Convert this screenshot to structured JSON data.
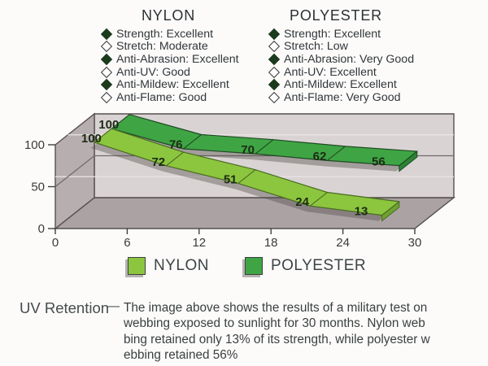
{
  "panels": [
    {
      "title": "NYLON",
      "items": [
        {
          "bullet": "filled",
          "text": "Strength: Excellent"
        },
        {
          "bullet": "outline",
          "text": "Stretch: Moderate"
        },
        {
          "bullet": "filled",
          "text": "Anti-Abrasion: Excellent"
        },
        {
          "bullet": "outline",
          "text": "Anti-UV: Good"
        },
        {
          "bullet": "filled",
          "text": "Anti-Mildew: Excellent"
        },
        {
          "bullet": "outline",
          "text": "Anti-Flame: Good"
        }
      ]
    },
    {
      "title": "POLYESTER",
      "items": [
        {
          "bullet": "filled",
          "text": "Strength: Excellent"
        },
        {
          "bullet": "outline",
          "text": "Stretch: Low"
        },
        {
          "bullet": "filled",
          "text": "Anti-Abrasion: Very Good"
        },
        {
          "bullet": "outline",
          "text": "Anti-UV: Excellent"
        },
        {
          "bullet": "filled",
          "text": "Anti-Mildew: Excellent"
        },
        {
          "bullet": "outline",
          "text": "Anti-Flame: Very Good"
        }
      ]
    }
  ],
  "chart_data": {
    "type": "area",
    "variant": "3d-ribbon",
    "title": "",
    "xlabel": "",
    "ylabel": "",
    "xlim": [
      0,
      30
    ],
    "ylim": [
      0,
      100
    ],
    "x_ticks": [
      0,
      6,
      12,
      18,
      24,
      30
    ],
    "y_ticks": [
      0,
      50,
      100
    ],
    "point_months": [
      3,
      9,
      15,
      21,
      27
    ],
    "grid": "on",
    "legend_position": "bottom",
    "series": [
      {
        "name": "NYLON",
        "color": "#8cc63f",
        "edge_color": "#6da22f",
        "values": [
          100,
          72,
          51,
          24,
          13
        ]
      },
      {
        "name": "POLYESTER",
        "color": "#3fa544",
        "edge_color": "#2d8334",
        "values": [
          100,
          76,
          70,
          62,
          56
        ]
      }
    ]
  },
  "legend": {
    "items": [
      {
        "label": "NYLON",
        "color": "#8cc63f"
      },
      {
        "label": "POLYESTER",
        "color": "#3fa544"
      }
    ]
  },
  "caption": {
    "title": "UV Retention",
    "dash": "—",
    "text": "The image above shows the results of a military test on\nwebbing exposed to sunlight for 30 months. Nylon web\nbing retained only 13% of its strength, while polyester w\nebbing retained 56%"
  },
  "colors": {
    "wall_left": "#b7afaf",
    "wall_back": "#d9d4d3",
    "floor": "#aba3a3",
    "edge": "#56504f",
    "grid_dark": "#716a69",
    "grid_light": "#eae6e5",
    "axis_text": "#3a3a3a",
    "value_text": "#1d2b15",
    "shadow": "rgba(88,82,82,0.42)",
    "bullet_filled": "#1c3a1c"
  }
}
